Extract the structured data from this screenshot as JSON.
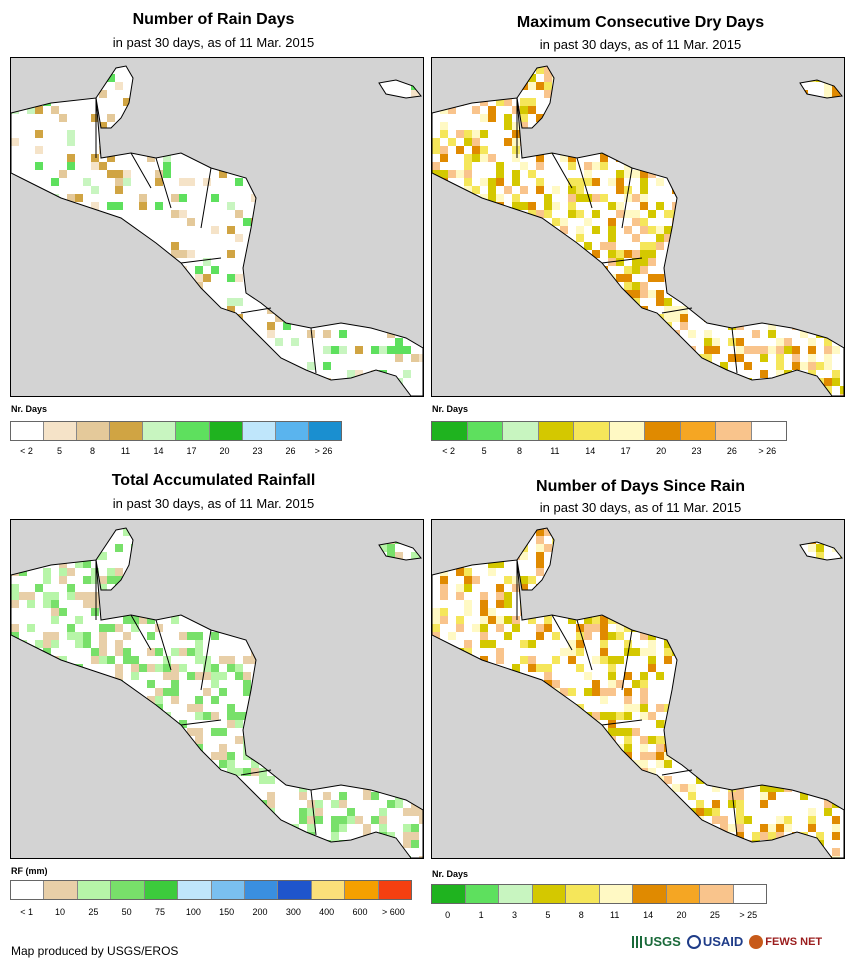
{
  "panels": [
    {
      "id": "rain-days",
      "title": "Number of Rain Days",
      "subtitle": "in past 30 days, as of 11 Mar. 2015",
      "legend_title": "Nr. Days",
      "legend_colors": [
        "#ffffff",
        "#f5e3c8",
        "#e4c99a",
        "#d0a443",
        "#c8f5c0",
        "#5ee05e",
        "#1fb31f",
        "#bfe6fb",
        "#5ab4ee",
        "#1a8fd0"
      ],
      "legend_labels": [
        "< 2",
        "5",
        "8",
        "11",
        "14",
        "17",
        "20",
        "23",
        "26",
        "> 26"
      ]
    },
    {
      "id": "max-dry-days",
      "title": "Maximum Consecutive Dry Days",
      "subtitle": "in past 30 days, as of 11 Mar. 2015",
      "legend_title": "Nr. Days",
      "legend_colors": [
        "#1fb31f",
        "#5ee05e",
        "#c8f5c0",
        "#d4c800",
        "#f5e65a",
        "#fff9c4",
        "#e08a00",
        "#f5a623",
        "#f9c48c",
        "#ffffff"
      ],
      "legend_labels": [
        "< 2",
        "5",
        "8",
        "11",
        "14",
        "17",
        "20",
        "23",
        "26",
        "> 26"
      ]
    },
    {
      "id": "total-rainfall",
      "title": "Total Accumulated Rainfall",
      "subtitle": "in past 30 days, as of 11 Mar. 2015",
      "legend_title": "RF (mm)",
      "legend_colors": [
        "#ffffff",
        "#e8cfa8",
        "#b7f5a8",
        "#78e06a",
        "#3ccb3c",
        "#bfe6fb",
        "#7ac0f0",
        "#3a8fe0",
        "#1f55cc",
        "#fbe07a",
        "#f5a000",
        "#f54010"
      ],
      "legend_labels": [
        "< 1",
        "10",
        "25",
        "50",
        "75",
        "100",
        "150",
        "200",
        "300",
        "400",
        "600",
        "> 600"
      ]
    },
    {
      "id": "days-since-rain",
      "title": "Number of Days Since Rain",
      "subtitle": "in past 30 days, as of 11 Mar. 2015",
      "legend_title": "Nr. Days",
      "legend_colors": [
        "#1fb31f",
        "#5ee05e",
        "#c8f5c0",
        "#d4c800",
        "#f5e65a",
        "#fff9c4",
        "#e08a00",
        "#f5a623",
        "#f9c48c",
        "#ffffff"
      ],
      "legend_labels": [
        "0",
        "1",
        "3",
        "5",
        "8",
        "11",
        "14",
        "20",
        "25",
        "> 25"
      ]
    }
  ],
  "footer": {
    "credit": "Map produced by USGS/EROS"
  },
  "logos": {
    "usgs": "USGS",
    "usaid": "USAID",
    "fews": "FEWS NET"
  }
}
